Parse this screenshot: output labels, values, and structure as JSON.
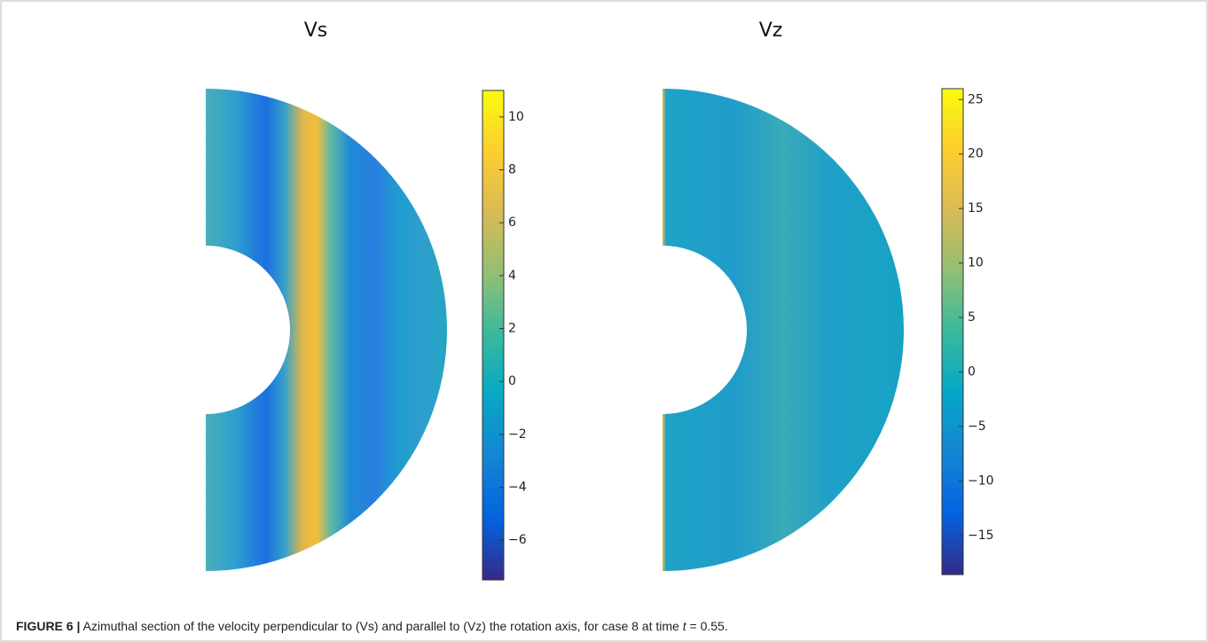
{
  "panels": [
    {
      "title": "Vs",
      "colorbar": {
        "ylim": [
          -7.5,
          11
        ],
        "yticks": [
          {
            "value": -6,
            "label": "−6"
          },
          {
            "value": -4,
            "label": "−4"
          },
          {
            "value": -2,
            "label": "−2"
          },
          0,
          2,
          4,
          6,
          8,
          10
        ]
      }
    },
    {
      "title": "Vz",
      "colorbar": {
        "ylim": [
          -18.6,
          26
        ],
        "yticks": [
          {
            "value": -15,
            "label": "−15"
          },
          {
            "value": -10,
            "label": "−10"
          },
          {
            "value": -5,
            "label": "−5"
          },
          0,
          5,
          10,
          15,
          20,
          25
        ]
      }
    }
  ],
  "caption": {
    "label": "FIGURE 6 |",
    "text": "Azimuthal section of the velocity perpendicular to (Vs) and parallel to (Vz) the rotation axis, for case 8 at time ",
    "variable": "t",
    "rest": " = 0.55."
  }
}
